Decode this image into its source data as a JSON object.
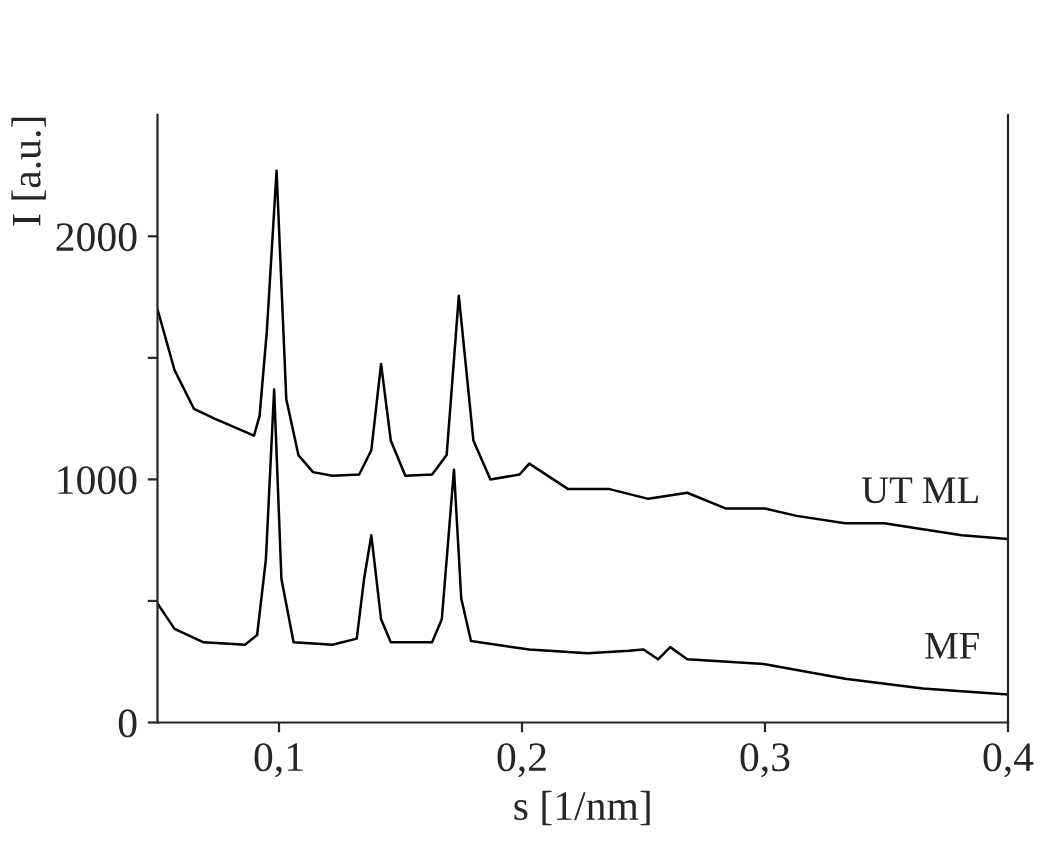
{
  "chart_data": {
    "type": "line",
    "xlabel": "s [1/nm]",
    "ylabel": "I [a.u.]",
    "xlim": [
      0.05,
      0.4
    ],
    "xticks": [
      {
        "value": 0.1,
        "label": "0,1"
      },
      {
        "value": 0.2,
        "label": "0,2"
      },
      {
        "value": 0.3,
        "label": "0,3"
      },
      {
        "value": 0.4,
        "label": "0,4"
      }
    ],
    "ylim": [
      0,
      2500
    ],
    "yticks": [
      0,
      {
        "value": 500,
        "label": null
      },
      1000,
      {
        "value": 1500,
        "label": null
      },
      2000
    ],
    "legend": false,
    "grid": false,
    "marker": "none",
    "line_style": "solid",
    "series": [
      {
        "name": "UT ML",
        "color": "#000000",
        "x": [
          0.05,
          0.057,
          0.065,
          0.0735,
          0.0897,
          0.092,
          0.095,
          0.099,
          0.103,
          0.108,
          0.114,
          0.122,
          0.133,
          0.138,
          0.142,
          0.146,
          0.152,
          0.163,
          0.169,
          0.174,
          0.18,
          0.187,
          0.199,
          0.203,
          0.219,
          0.236,
          0.252,
          0.268,
          0.284,
          0.3,
          0.313,
          0.333,
          0.349,
          0.365,
          0.381,
          0.4
        ],
        "values": [
          1700,
          1450,
          1290,
          1250,
          1180,
          1260,
          1610,
          2270,
          1330,
          1100,
          1030,
          1015,
          1020,
          1120,
          1475,
          1160,
          1015,
          1020,
          1100,
          1755,
          1160,
          1000,
          1020,
          1065,
          960,
          960,
          920,
          945,
          880,
          880,
          850,
          820,
          820,
          795,
          770,
          755
        ]
      },
      {
        "name": "MF",
        "color": "#000000",
        "x": [
          0.05,
          0.057,
          0.069,
          0.086,
          0.091,
          0.0946,
          0.098,
          0.101,
          0.106,
          0.122,
          0.132,
          0.135,
          0.138,
          0.142,
          0.146,
          0.163,
          0.167,
          0.172,
          0.175,
          0.179,
          0.203,
          0.227,
          0.244,
          0.25,
          0.256,
          0.261,
          0.268,
          0.3,
          0.333,
          0.365,
          0.4
        ],
        "values": [
          490,
          385,
          330,
          320,
          360,
          670,
          1370,
          590,
          330,
          320,
          345,
          590,
          770,
          425,
          330,
          330,
          425,
          1040,
          510,
          335,
          300,
          285,
          295,
          300,
          260,
          310,
          260,
          240,
          180,
          140,
          115
        ]
      }
    ]
  }
}
